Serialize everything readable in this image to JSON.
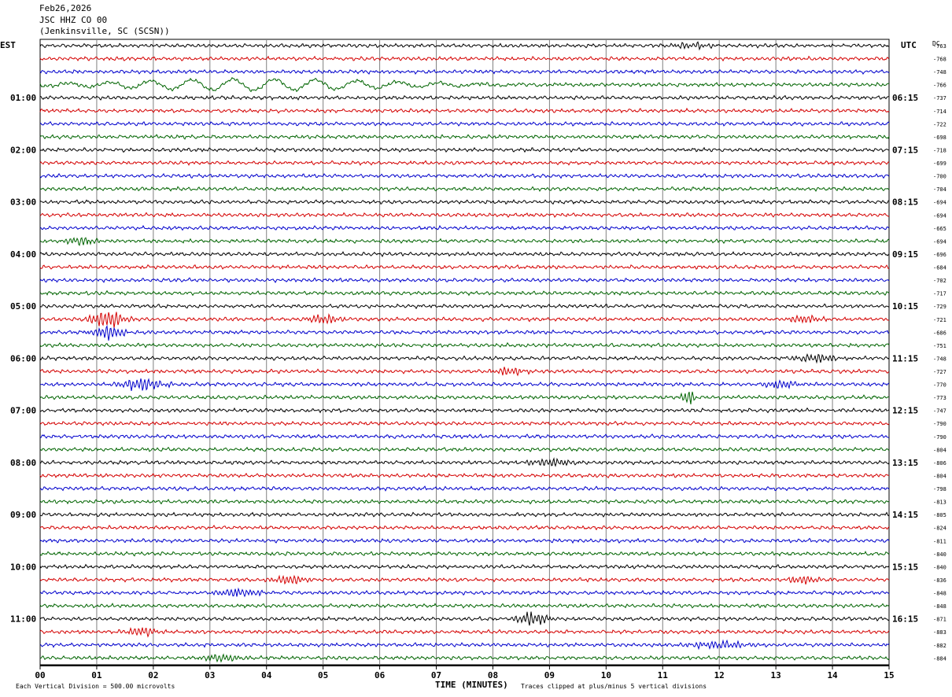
{
  "header": {
    "date": "Feb26,2026",
    "station": "JSC HHZ CO 00",
    "location": "(Jenkinsville, SC (SCSN))"
  },
  "left_zone_label": "EST",
  "right_zone_label": "UTC",
  "dc_label": "DC",
  "x_axis_label": "TIME (MINUTES)",
  "footer_left": "Each Vertical Division =  500.00 microvolts",
  "footer_right": "Traces clipped at plus/minus 5 vertical divisions",
  "colors": {
    "trace_cycle": [
      "#000000",
      "#d40000",
      "#0000cc",
      "#006400"
    ],
    "grid": "#808080"
  },
  "chart_data": {
    "type": "line",
    "title": "JSC HHZ CO 00",
    "xlabel": "TIME (MINUTES)",
    "x_ticks": [
      "00",
      "01",
      "02",
      "03",
      "04",
      "05",
      "06",
      "07",
      "08",
      "09",
      "10",
      "11",
      "12",
      "13",
      "14",
      "15"
    ],
    "xlim": [
      0,
      15
    ],
    "trace_count": 48,
    "left_hour_labels": [
      {
        "row": 4,
        "label": "01:00"
      },
      {
        "row": 8,
        "label": "02:00"
      },
      {
        "row": 12,
        "label": "03:00"
      },
      {
        "row": 16,
        "label": "04:00"
      },
      {
        "row": 20,
        "label": "05:00"
      },
      {
        "row": 24,
        "label": "06:00"
      },
      {
        "row": 28,
        "label": "07:00"
      },
      {
        "row": 32,
        "label": "08:00"
      },
      {
        "row": 36,
        "label": "09:00"
      },
      {
        "row": 40,
        "label": "10:00"
      },
      {
        "row": 44,
        "label": "11:00"
      }
    ],
    "right_hour_labels": [
      {
        "row": 4,
        "label": "06:15"
      },
      {
        "row": 8,
        "label": "07:15"
      },
      {
        "row": 12,
        "label": "08:15"
      },
      {
        "row": 16,
        "label": "09:15"
      },
      {
        "row": 20,
        "label": "10:15"
      },
      {
        "row": 24,
        "label": "11:15"
      },
      {
        "row": 28,
        "label": "12:15"
      },
      {
        "row": 32,
        "label": "13:15"
      },
      {
        "row": 36,
        "label": "14:15"
      },
      {
        "row": 40,
        "label": "15:15"
      },
      {
        "row": 44,
        "label": "16:15"
      }
    ],
    "dc_offsets": [
      "-763",
      "-768",
      "-748",
      "-766",
      "-737",
      "-714",
      "-722",
      "-698",
      "-718",
      "-699",
      "-700",
      "-704",
      "-694",
      "-694",
      "-665",
      "-694",
      "-696",
      "-684",
      "-702",
      "-717",
      "-729",
      "-721",
      "-686",
      "-751",
      "-748",
      "-727",
      "-770",
      "-773",
      "-747",
      "-790",
      "-790",
      "-804",
      "-806",
      "-804",
      "-798",
      "-813",
      "-805",
      "-824",
      "-811",
      "-840",
      "-840",
      "-836",
      "-848",
      "-848",
      "-871",
      "-883",
      "-882",
      "-884"
    ],
    "events": [
      {
        "row": 0,
        "minute": 11.5,
        "width": 0.4,
        "amp": 0.7
      },
      {
        "row": 3,
        "minute": 3.8,
        "width": 3.0,
        "amp": 1.2,
        "slow": true
      },
      {
        "row": 15,
        "minute": 0.7,
        "width": 0.3,
        "amp": 1.0
      },
      {
        "row": 21,
        "minute": 1.2,
        "width": 0.3,
        "amp": 2.3
      },
      {
        "row": 21,
        "minute": 5.0,
        "width": 0.3,
        "amp": 1.0
      },
      {
        "row": 21,
        "minute": 13.5,
        "width": 0.3,
        "amp": 1.0
      },
      {
        "row": 22,
        "minute": 1.2,
        "width": 0.3,
        "amp": 1.6
      },
      {
        "row": 24,
        "minute": 13.7,
        "width": 0.4,
        "amp": 1.0
      },
      {
        "row": 25,
        "minute": 8.3,
        "width": 0.3,
        "amp": 1.0
      },
      {
        "row": 26,
        "minute": 1.8,
        "width": 0.4,
        "amp": 1.5
      },
      {
        "row": 26,
        "minute": 13.1,
        "width": 0.3,
        "amp": 1.0
      },
      {
        "row": 27,
        "minute": 11.45,
        "width": 0.1,
        "amp": 2.2
      },
      {
        "row": 32,
        "minute": 9.0,
        "width": 0.4,
        "amp": 1.0
      },
      {
        "row": 41,
        "minute": 4.4,
        "width": 0.3,
        "amp": 1.2
      },
      {
        "row": 41,
        "minute": 13.5,
        "width": 0.3,
        "amp": 1.0
      },
      {
        "row": 42,
        "minute": 3.5,
        "width": 0.4,
        "amp": 1.0
      },
      {
        "row": 44,
        "minute": 8.7,
        "width": 0.3,
        "amp": 1.6
      },
      {
        "row": 45,
        "minute": 1.8,
        "width": 0.3,
        "amp": 1.0
      },
      {
        "row": 46,
        "minute": 12.0,
        "width": 0.5,
        "amp": 0.9
      },
      {
        "row": 47,
        "minute": 3.2,
        "width": 0.4,
        "amp": 0.9
      }
    ]
  }
}
